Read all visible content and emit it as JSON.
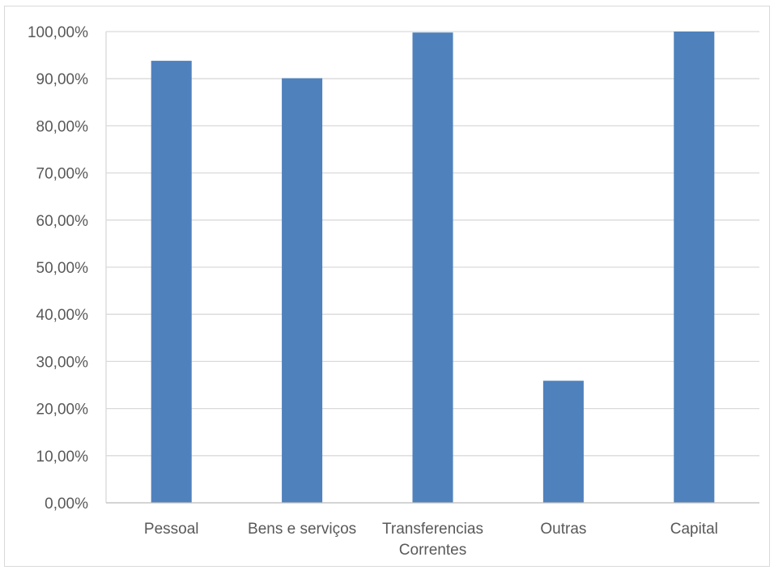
{
  "chart_data": {
    "type": "bar",
    "title": "",
    "xlabel": "",
    "ylabel": "",
    "categories": [
      [
        "Pessoal"
      ],
      [
        "Bens e serviços"
      ],
      [
        "Transferencias",
        "Correntes"
      ],
      [
        "Outras"
      ],
      [
        "Capital"
      ]
    ],
    "values": [
      93.8,
      90.1,
      99.8,
      25.9,
      100.0
    ],
    "ylim": [
      0,
      100
    ],
    "yticks": [
      "0,00%",
      "10,00%",
      "20,00%",
      "30,00%",
      "40,00%",
      "50,00%",
      "60,00%",
      "70,00%",
      "80,00%",
      "90,00%",
      "100,00%"
    ],
    "grid": true,
    "legend": "none",
    "bar_color": "#4f81bd",
    "grid_color": "#d9d9d9"
  }
}
